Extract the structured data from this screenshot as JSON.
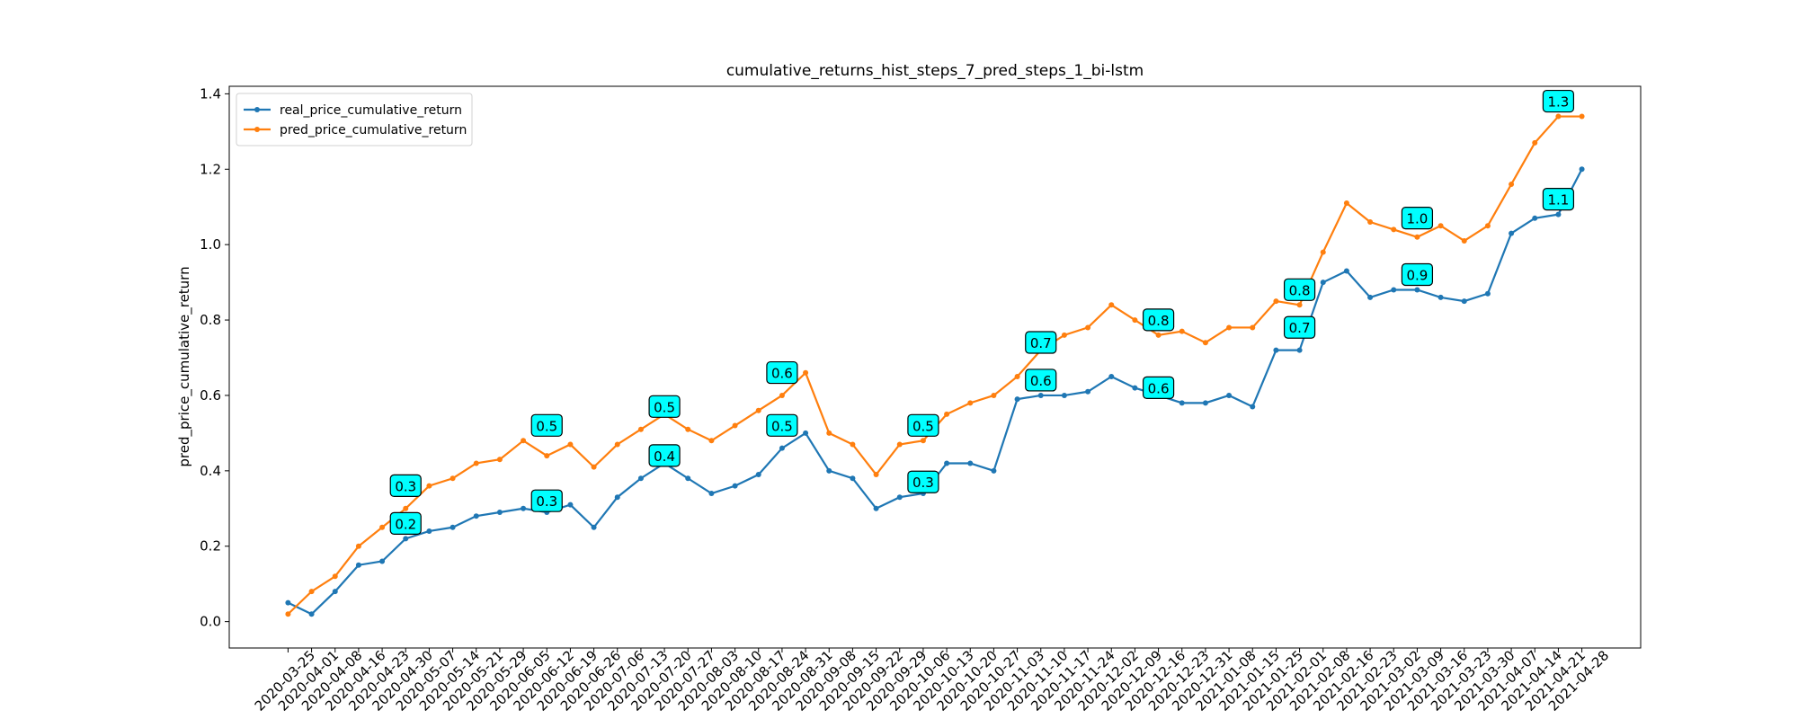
{
  "chart_data": {
    "type": "line",
    "title": "cumulative_returns_hist_steps_7_pred_steps_1_bi-lstm",
    "y_label": "pred_price_cumulative_return",
    "categories": [
      "2020-03-25",
      "2020-04-01",
      "2020-04-08",
      "2020-04-16",
      "2020-04-23",
      "2020-04-30",
      "2020-05-07",
      "2020-05-14",
      "2020-05-21",
      "2020-05-29",
      "2020-06-05",
      "2020-06-12",
      "2020-06-19",
      "2020-06-26",
      "2020-07-06",
      "2020-07-13",
      "2020-07-20",
      "2020-07-27",
      "2020-08-03",
      "2020-08-10",
      "2020-08-17",
      "2020-08-24",
      "2020-08-31",
      "2020-09-08",
      "2020-09-15",
      "2020-09-22",
      "2020-09-29",
      "2020-10-06",
      "2020-10-13",
      "2020-10-20",
      "2020-10-27",
      "2020-11-03",
      "2020-11-10",
      "2020-11-17",
      "2020-11-24",
      "2020-12-02",
      "2020-12-09",
      "2020-12-16",
      "2020-12-23",
      "2020-12-31",
      "2021-01-08",
      "2021-01-15",
      "2021-01-25",
      "2021-02-01",
      "2021-02-08",
      "2021-02-16",
      "2021-02-23",
      "2021-03-02",
      "2021-03-09",
      "2021-03-16",
      "2021-03-23",
      "2021-03-30",
      "2021-04-07",
      "2021-04-14",
      "2021-04-21",
      "2021-04-28"
    ],
    "series": [
      {
        "name": "real_price_cumulative_return",
        "color": "#1f77b4",
        "values": [
          0.05,
          0.02,
          0.08,
          0.15,
          0.16,
          0.22,
          0.24,
          0.25,
          0.28,
          0.29,
          0.3,
          0.29,
          0.31,
          0.25,
          0.33,
          0.38,
          0.42,
          0.38,
          0.34,
          0.36,
          0.39,
          0.46,
          0.5,
          0.4,
          0.38,
          0.3,
          0.33,
          0.34,
          0.42,
          0.42,
          0.4,
          0.59,
          0.6,
          0.6,
          0.61,
          0.65,
          0.62,
          0.6,
          0.58,
          0.58,
          0.6,
          0.57,
          0.72,
          0.72,
          0.9,
          0.93,
          0.86,
          0.88,
          0.88,
          0.86,
          0.85,
          0.87,
          1.03,
          1.07,
          1.08,
          1.2
        ]
      },
      {
        "name": "pred_price_cumulative_return",
        "color": "#ff7f0e",
        "values": [
          0.02,
          0.08,
          0.12,
          0.2,
          0.25,
          0.3,
          0.36,
          0.38,
          0.42,
          0.43,
          0.48,
          0.44,
          0.47,
          0.41,
          0.47,
          0.51,
          0.55,
          0.51,
          0.48,
          0.52,
          0.56,
          0.6,
          0.66,
          0.5,
          0.47,
          0.39,
          0.47,
          0.48,
          0.55,
          0.58,
          0.6,
          0.65,
          0.72,
          0.76,
          0.78,
          0.84,
          0.8,
          0.76,
          0.77,
          0.74,
          0.78,
          0.78,
          0.85,
          0.84,
          0.98,
          1.11,
          1.06,
          1.04,
          1.02,
          1.05,
          1.01,
          1.05,
          1.16,
          1.27,
          1.34,
          1.34
        ]
      }
    ],
    "annotations": [
      {
        "x": "2020-04-30",
        "y": 0.32,
        "text": "0.3"
      },
      {
        "x": "2020-04-30",
        "y": 0.22,
        "text": "0.2"
      },
      {
        "x": "2020-06-12",
        "y": 0.48,
        "text": "0.5"
      },
      {
        "x": "2020-06-12",
        "y": 0.28,
        "text": "0.3"
      },
      {
        "x": "2020-07-20",
        "y": 0.53,
        "text": "0.5"
      },
      {
        "x": "2020-07-20",
        "y": 0.4,
        "text": "0.4"
      },
      {
        "x": "2020-08-24",
        "y": 0.62,
        "text": "0.6"
      },
      {
        "x": "2020-08-24",
        "y": 0.48,
        "text": "0.5"
      },
      {
        "x": "2020-10-06",
        "y": 0.48,
        "text": "0.5"
      },
      {
        "x": "2020-10-06",
        "y": 0.33,
        "text": "0.3"
      },
      {
        "x": "2020-11-10",
        "y": 0.7,
        "text": "0.7"
      },
      {
        "x": "2020-11-10",
        "y": 0.6,
        "text": "0.6"
      },
      {
        "x": "2020-12-16",
        "y": 0.76,
        "text": "0.8"
      },
      {
        "x": "2020-12-16",
        "y": 0.58,
        "text": "0.6"
      },
      {
        "x": "2021-02-01",
        "y": 0.84,
        "text": "0.8"
      },
      {
        "x": "2021-02-01",
        "y": 0.74,
        "text": "0.7"
      },
      {
        "x": "2021-03-09",
        "y": 1.03,
        "text": "1.0"
      },
      {
        "x": "2021-03-09",
        "y": 0.88,
        "text": "0.9"
      },
      {
        "x": "2021-04-21",
        "y": 1.34,
        "text": "1.3"
      },
      {
        "x": "2021-04-21",
        "y": 1.08,
        "text": "1.1"
      }
    ],
    "ylim": [
      -0.07,
      1.42
    ],
    "yticks": [
      {
        "value": 0,
        "label": "0.0"
      },
      0.2,
      0.4,
      0.6,
      0.8,
      {
        "value": 1,
        "label": "1.0"
      },
      1.2,
      1.4
    ],
    "legend": "upper left"
  }
}
